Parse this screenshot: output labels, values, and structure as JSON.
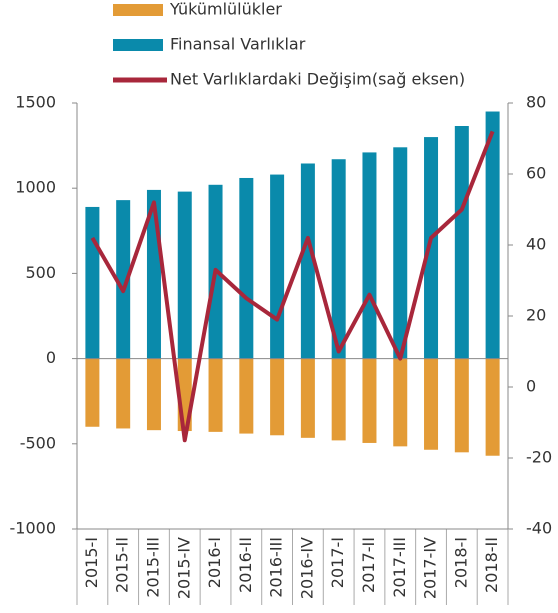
{
  "chart_data": {
    "type": "bar_line",
    "categories": [
      "2015-I",
      "2015-II",
      "2015-III",
      "2015-IV",
      "2016-I",
      "2016-II",
      "2016-III",
      "2016-IV",
      "2017-I",
      "2017-II",
      "2017-III",
      "2017-IV",
      "2018-I",
      "2018-II"
    ],
    "series": [
      {
        "name": "Yükümlülükler",
        "color": "#e39b36",
        "type": "bar",
        "values": [
          -400,
          -410,
          -420,
          -425,
          -430,
          -440,
          -450,
          -465,
          -480,
          -495,
          -515,
          -535,
          -550,
          -570
        ]
      },
      {
        "name": "Finansal Varlıklar",
        "color": "#0a8aab",
        "type": "bar",
        "values": [
          890,
          930,
          990,
          980,
          1020,
          1060,
          1080,
          1145,
          1170,
          1210,
          1240,
          1300,
          1365,
          1450
        ]
      },
      {
        "name": "Net Varlıklardaki Değişim(sağ eksen)",
        "color": "#a8273b",
        "type": "line",
        "axis": "y2",
        "values": [
          42,
          27,
          52,
          -15,
          33,
          25,
          19,
          42,
          10,
          26,
          8,
          42,
          50,
          72
        ]
      }
    ],
    "ylim": [
      -1000,
      1500
    ],
    "yticks": [
      -1000,
      -500,
      0,
      500,
      1000,
      1500
    ],
    "y2lim": [
      -40,
      80
    ],
    "y2ticks": [
      -40,
      -20,
      0,
      20,
      40,
      60,
      80
    ]
  }
}
